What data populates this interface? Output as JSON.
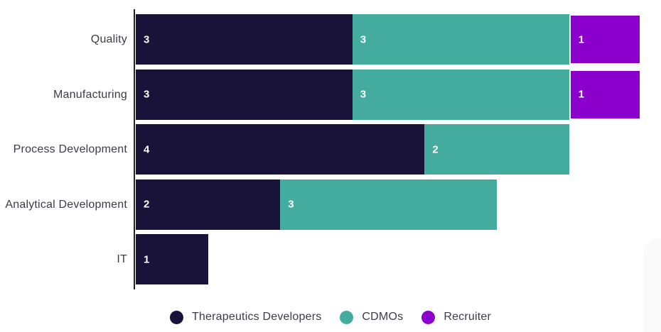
{
  "chart_data": {
    "type": "bar",
    "orientation": "horizontal",
    "stacked": true,
    "title": "",
    "categories": [
      "Quality",
      "Manufacturing",
      "Process Development",
      "Analytical Development",
      "IT"
    ],
    "series": [
      {
        "name": "Therapeutics Developers",
        "color": "#1a1339",
        "values": [
          3,
          3,
          4,
          2,
          1
        ]
      },
      {
        "name": "CDMOs",
        "color": "#44ac9e",
        "values": [
          3,
          3,
          2,
          3,
          0
        ]
      },
      {
        "name": "Recruiter",
        "color": "#8b00cc",
        "values": [
          1,
          1,
          0,
          0,
          0
        ]
      }
    ],
    "xlim": [
      0,
      7
    ],
    "grid": false,
    "axis_line_color": "#232328",
    "value_labels": "inside segment start, white",
    "legend_position": "bottom-center"
  },
  "legend": {
    "items": [
      {
        "label": "Therapeutics Developers",
        "color": "#1a1339"
      },
      {
        "label": "CDMOs",
        "color": "#44ac9e"
      },
      {
        "label": "Recruiter",
        "color": "#8b00cc"
      }
    ]
  }
}
